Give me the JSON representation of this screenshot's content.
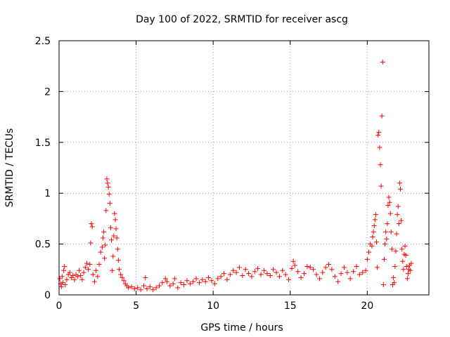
{
  "chart_data": {
    "type": "scatter",
    "title": "Day 100 of 2022, SRMTID for receiver ascg",
    "xlabel": "GPS time / hours",
    "ylabel": "SRMTID / TECUs",
    "xlim": [
      0,
      24
    ],
    "ylim": [
      0,
      2.5
    ],
    "grid": true,
    "marker": "+",
    "color": "#ff0000",
    "xticks": [
      0,
      5,
      10,
      15,
      20
    ],
    "yticks": [
      0,
      0.5,
      1,
      1.5,
      2,
      2.5
    ],
    "xtick_labels": [
      "0",
      "5",
      "10",
      "15",
      "20"
    ],
    "ytick_labels": [
      "0",
      "0.5",
      "1",
      "1.5",
      "2",
      "2.5"
    ],
    "series": [
      {
        "name": "SRMTID",
        "points": [
          [
            0.05,
            0.16
          ],
          [
            0.1,
            0.11
          ],
          [
            0.15,
            0.08
          ],
          [
            0.2,
            0.18
          ],
          [
            0.25,
            0.12
          ],
          [
            0.3,
            0.24
          ],
          [
            0.35,
            0.28
          ],
          [
            0.4,
            0.1
          ],
          [
            0.5,
            0.15
          ],
          [
            0.6,
            0.2
          ],
          [
            0.7,
            0.22
          ],
          [
            0.8,
            0.17
          ],
          [
            0.9,
            0.19
          ],
          [
            1.0,
            0.15
          ],
          [
            1.1,
            0.2
          ],
          [
            1.2,
            0.18
          ],
          [
            1.3,
            0.24
          ],
          [
            1.4,
            0.19
          ],
          [
            1.5,
            0.15
          ],
          [
            1.6,
            0.22
          ],
          [
            1.7,
            0.27
          ],
          [
            1.8,
            0.31
          ],
          [
            1.9,
            0.25
          ],
          [
            2.0,
            0.3
          ],
          [
            2.05,
            0.51
          ],
          [
            2.1,
            0.7
          ],
          [
            2.15,
            0.67
          ],
          [
            2.2,
            0.2
          ],
          [
            2.3,
            0.13
          ],
          [
            2.4,
            0.24
          ],
          [
            2.5,
            0.18
          ],
          [
            2.6,
            0.3
          ],
          [
            2.7,
            0.42
          ],
          [
            2.8,
            0.47
          ],
          [
            2.85,
            0.56
          ],
          [
            2.9,
            0.62
          ],
          [
            2.95,
            0.36
          ],
          [
            3.0,
            0.49
          ],
          [
            3.05,
            0.83
          ],
          [
            3.1,
            1.14
          ],
          [
            3.15,
            1.1
          ],
          [
            3.2,
            1.06
          ],
          [
            3.25,
            0.99
          ],
          [
            3.3,
            0.9
          ],
          [
            3.35,
            0.66
          ],
          [
            3.4,
            0.54
          ],
          [
            3.45,
            0.24
          ],
          [
            3.5,
            0.38
          ],
          [
            3.55,
            0.58
          ],
          [
            3.6,
            0.8
          ],
          [
            3.65,
            0.74
          ],
          [
            3.7,
            0.65
          ],
          [
            3.75,
            0.56
          ],
          [
            3.8,
            0.45
          ],
          [
            3.85,
            0.34
          ],
          [
            3.9,
            0.25
          ],
          [
            4.0,
            0.2
          ],
          [
            4.1,
            0.17
          ],
          [
            4.2,
            0.14
          ],
          [
            4.3,
            0.11
          ],
          [
            4.4,
            0.09
          ],
          [
            4.5,
            0.07
          ],
          [
            4.7,
            0.08
          ],
          [
            4.9,
            0.06
          ],
          [
            5.1,
            0.07
          ],
          [
            5.3,
            0.05
          ],
          [
            5.5,
            0.09
          ],
          [
            5.6,
            0.17
          ],
          [
            5.7,
            0.06
          ],
          [
            5.9,
            0.08
          ],
          [
            6.1,
            0.05
          ],
          [
            6.3,
            0.07
          ],
          [
            6.5,
            0.09
          ],
          [
            6.7,
            0.12
          ],
          [
            6.9,
            0.16
          ],
          [
            7.0,
            0.13
          ],
          [
            7.2,
            0.09
          ],
          [
            7.4,
            0.11
          ],
          [
            7.5,
            0.16
          ],
          [
            7.7,
            0.07
          ],
          [
            7.9,
            0.12
          ],
          [
            8.1,
            0.1
          ],
          [
            8.3,
            0.14
          ],
          [
            8.5,
            0.11
          ],
          [
            8.7,
            0.13
          ],
          [
            8.9,
            0.16
          ],
          [
            9.1,
            0.12
          ],
          [
            9.3,
            0.15
          ],
          [
            9.5,
            0.13
          ],
          [
            9.7,
            0.17
          ],
          [
            9.9,
            0.14
          ],
          [
            10.1,
            0.11
          ],
          [
            10.3,
            0.16
          ],
          [
            10.5,
            0.18
          ],
          [
            10.7,
            0.21
          ],
          [
            10.9,
            0.15
          ],
          [
            11.1,
            0.2
          ],
          [
            11.3,
            0.24
          ],
          [
            11.5,
            0.22
          ],
          [
            11.7,
            0.27
          ],
          [
            11.9,
            0.19
          ],
          [
            12.1,
            0.25
          ],
          [
            12.3,
            0.21
          ],
          [
            12.5,
            0.18
          ],
          [
            12.7,
            0.23
          ],
          [
            12.9,
            0.26
          ],
          [
            13.1,
            0.2
          ],
          [
            13.3,
            0.24
          ],
          [
            13.5,
            0.21
          ],
          [
            13.7,
            0.19
          ],
          [
            13.9,
            0.25
          ],
          [
            14.1,
            0.22
          ],
          [
            14.3,
            0.18
          ],
          [
            14.5,
            0.24
          ],
          [
            14.7,
            0.2
          ],
          [
            14.9,
            0.15
          ],
          [
            15.1,
            0.26
          ],
          [
            15.2,
            0.33
          ],
          [
            15.3,
            0.29
          ],
          [
            15.5,
            0.23
          ],
          [
            15.7,
            0.17
          ],
          [
            15.9,
            0.21
          ],
          [
            16.1,
            0.28
          ],
          [
            16.3,
            0.27
          ],
          [
            16.5,
            0.25
          ],
          [
            16.7,
            0.2
          ],
          [
            16.9,
            0.16
          ],
          [
            17.1,
            0.22
          ],
          [
            17.3,
            0.27
          ],
          [
            17.5,
            0.3
          ],
          [
            17.7,
            0.25
          ],
          [
            17.9,
            0.18
          ],
          [
            18.1,
            0.13
          ],
          [
            18.3,
            0.21
          ],
          [
            18.5,
            0.27
          ],
          [
            18.7,
            0.22
          ],
          [
            18.9,
            0.16
          ],
          [
            19.1,
            0.23
          ],
          [
            19.3,
            0.28
          ],
          [
            19.5,
            0.2
          ],
          [
            19.7,
            0.22
          ],
          [
            19.9,
            0.24
          ],
          [
            20.0,
            0.35
          ],
          [
            20.1,
            0.42
          ],
          [
            20.2,
            0.5
          ],
          [
            20.3,
            0.48
          ],
          [
            20.35,
            0.57
          ],
          [
            20.4,
            0.62
          ],
          [
            20.45,
            0.68
          ],
          [
            20.5,
            0.74
          ],
          [
            20.55,
            0.79
          ],
          [
            20.6,
            0.52
          ],
          [
            20.65,
            0.27
          ],
          [
            20.7,
            1.57
          ],
          [
            20.75,
            1.6
          ],
          [
            20.8,
            1.45
          ],
          [
            20.85,
            1.28
          ],
          [
            20.9,
            1.07
          ],
          [
            20.95,
            1.76
          ],
          [
            21.0,
            2.29
          ],
          [
            21.05,
            0.1
          ],
          [
            21.1,
            0.35
          ],
          [
            21.15,
            0.5
          ],
          [
            21.2,
            0.62
          ],
          [
            21.25,
            0.55
          ],
          [
            21.3,
            0.7
          ],
          [
            21.35,
            0.88
          ],
          [
            21.4,
            0.96
          ],
          [
            21.45,
            0.91
          ],
          [
            21.5,
            0.8
          ],
          [
            21.55,
            0.62
          ],
          [
            21.6,
            0.45
          ],
          [
            21.65,
            0.1
          ],
          [
            21.7,
            0.17
          ],
          [
            21.75,
            0.12
          ],
          [
            21.8,
            0.28
          ],
          [
            21.85,
            0.43
          ],
          [
            21.9,
            0.6
          ],
          [
            21.95,
            0.79
          ],
          [
            22.0,
            0.87
          ],
          [
            22.05,
            0.7
          ],
          [
            22.1,
            1.1
          ],
          [
            22.15,
            1.04
          ],
          [
            22.2,
            0.73
          ],
          [
            22.25,
            0.45
          ],
          [
            22.3,
            0.33
          ],
          [
            22.35,
            0.25
          ],
          [
            22.4,
            0.4
          ],
          [
            22.45,
            0.48
          ],
          [
            22.5,
            0.39
          ],
          [
            22.55,
            0.28
          ],
          [
            22.6,
            0.16
          ],
          [
            22.65,
            0.21
          ],
          [
            22.7,
            0.25
          ],
          [
            22.75,
            0.29
          ],
          [
            22.8,
            0.24
          ],
          [
            22.85,
            0.31
          ]
        ]
      }
    ]
  }
}
